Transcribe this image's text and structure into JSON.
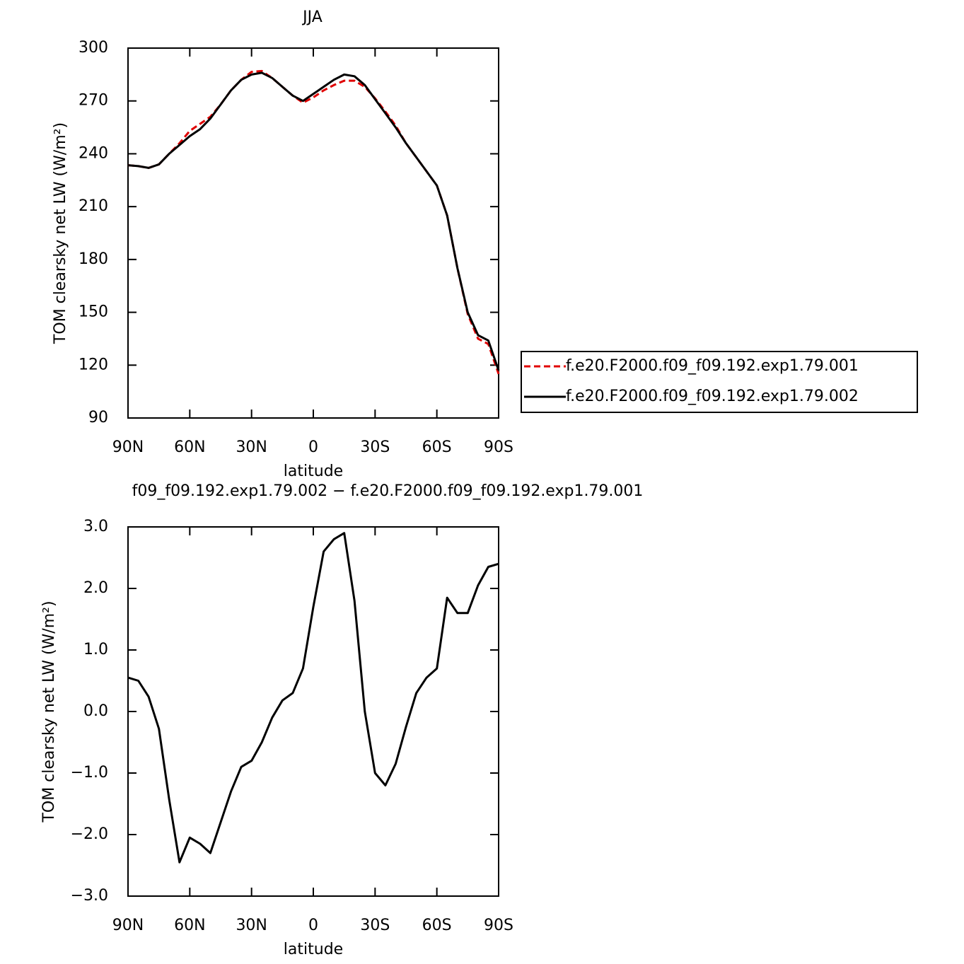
{
  "chart_data": [
    {
      "type": "line",
      "title": "JJA",
      "xlabel": "latitude",
      "ylabel": "TOM clearsky net LW (W/m²)",
      "x": [
        90,
        85,
        80,
        75,
        70,
        65,
        60,
        55,
        50,
        45,
        40,
        35,
        30,
        25,
        20,
        15,
        10,
        5,
        0,
        -5,
        -10,
        -15,
        -20,
        -25,
        -30,
        -35,
        -40,
        -45,
        -50,
        -55,
        -60,
        -65,
        -70,
        -75,
        -80,
        -85,
        -90
      ],
      "series": [
        {
          "name": "f.e20.F2000.f09_f09.192.exp1.79.001",
          "color": "#e00000",
          "linestyle": "dashed",
          "values": [
            233.5,
            233,
            232,
            234,
            240,
            246,
            253,
            257,
            261,
            268,
            276,
            282,
            286.5,
            287,
            283,
            278,
            273,
            269,
            272,
            276,
            279,
            281.5,
            281.5,
            278,
            271.5,
            264,
            256,
            246,
            238,
            230,
            222,
            205,
            175,
            149,
            135,
            132,
            115
          ]
        },
        {
          "name": "f.e20.F2000.f09_f09.192.exp1.79.002",
          "color": "#000000",
          "linestyle": "solid",
          "values": [
            233.5,
            233,
            232,
            234,
            240,
            245,
            250,
            254,
            260,
            268,
            276,
            282,
            285,
            286,
            283,
            278,
            273,
            270,
            274,
            278,
            282,
            285,
            284,
            279,
            271,
            263,
            255,
            246,
            238,
            230,
            222,
            205,
            175,
            150,
            137,
            134,
            117
          ]
        }
      ],
      "xlim": [
        90,
        -90
      ],
      "xticks": [
        {
          "value": 90,
          "label": "90N"
        },
        {
          "value": 60,
          "label": "60N"
        },
        {
          "value": 30,
          "label": "30N"
        },
        0,
        {
          "value": -30,
          "label": "30S"
        },
        {
          "value": -60,
          "label": "60S"
        },
        {
          "value": -90,
          "label": "90S"
        }
      ],
      "ylim": [
        90,
        300
      ],
      "yticks": [
        90,
        120,
        150,
        180,
        210,
        240,
        270,
        300
      ],
      "legend": "right"
    },
    {
      "type": "line",
      "title": "f09_f09.192.exp1.79.002 − f.e20.F2000.f09_f09.192.exp1.79.001",
      "xlabel": "latitude",
      "ylabel": "TOM clearsky net LW (W/m²)",
      "x": [
        90,
        85,
        80,
        75,
        70,
        65,
        60,
        55,
        50,
        45,
        40,
        35,
        30,
        25,
        20,
        15,
        10,
        5,
        0,
        -5,
        -10,
        -15,
        -20,
        -25,
        -30,
        -35,
        -40,
        -45,
        -50,
        -55,
        -60,
        -65,
        -70,
        -75,
        -80,
        -85,
        -90
      ],
      "color": "#000000",
      "values": [
        0.55,
        0.5,
        0.24,
        -0.28,
        -1.43,
        -2.45,
        -2.05,
        -2.15,
        -2.3,
        -1.8,
        -1.3,
        -0.9,
        -0.8,
        -0.5,
        -0.1,
        0.18,
        0.3,
        0.7,
        1.7,
        2.6,
        2.8,
        2.9,
        1.8,
        0.0,
        -1.0,
        -1.2,
        -0.85,
        -0.25,
        0.3,
        0.55,
        0.7,
        1.85,
        1.6,
        1.6,
        2.05,
        2.35,
        2.4
      ],
      "xlim": [
        90,
        -90
      ],
      "xticks": [
        {
          "value": 90,
          "label": "90N"
        },
        {
          "value": 60,
          "label": "60N"
        },
        {
          "value": 30,
          "label": "30N"
        },
        0,
        {
          "value": -30,
          "label": "30S"
        },
        {
          "value": -60,
          "label": "60S"
        },
        {
          "value": -90,
          "label": "90S"
        }
      ],
      "ylim": [
        -3,
        3
      ],
      "yticks": [
        {
          "value": -3,
          "label": "−3.0"
        },
        {
          "value": -2,
          "label": "−2.0"
        },
        {
          "value": -1,
          "label": "−1.0"
        },
        {
          "value": 0,
          "label": "0.0"
        },
        {
          "value": 1,
          "label": "1.0"
        },
        {
          "value": 2,
          "label": "2.0"
        },
        {
          "value": 3,
          "label": "3.0"
        }
      ]
    }
  ]
}
